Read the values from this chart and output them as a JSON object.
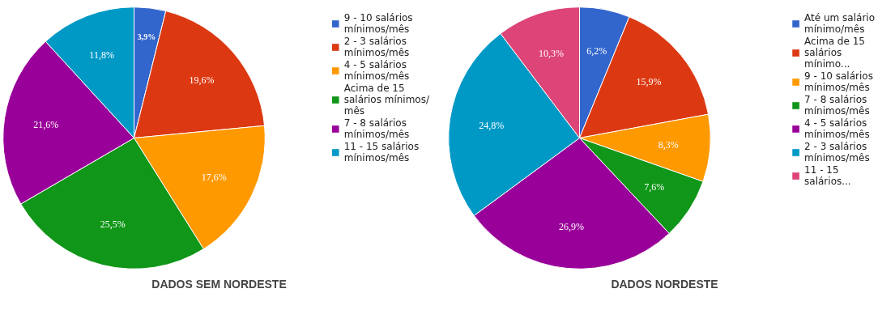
{
  "chart_data": [
    {
      "type": "pie",
      "title": "DADOS SEM NORDESTE",
      "legend": "right",
      "categories": [
        "9 - 10 salários mínimos/mês",
        "2 - 3 salários mínimos/mês",
        "4 - 5 salários mínimos/mês",
        "Acima de 15 salários mínimos/ mês",
        "7 - 8 salários mínimos/mês",
        "11 - 15 salários mínimos/mês"
      ],
      "values": [
        3.9,
        19.6,
        17.6,
        25.5,
        21.6,
        11.8
      ],
      "value_labels": [
        "3,9%",
        "19,6%",
        "17,6%",
        "25,5%",
        "21,6%",
        "11,8%"
      ],
      "colors": [
        "#3366cc",
        "#dc3912",
        "#ff9900",
        "#109618",
        "#990099",
        "#0099c6"
      ]
    },
    {
      "type": "pie",
      "title": "DADOS NORDESTE",
      "legend": "right",
      "categories": [
        "Até um salário mínimo/mês",
        "Acima de 15 salários mínimo...",
        "9 - 10 salários mínimos/mês",
        "7 - 8 salários mínimos/mês",
        "4 - 5 salários mínimos/mês",
        "2 - 3 salários mínimos/mês",
        "11 - 15 salários..."
      ],
      "values": [
        6.2,
        15.9,
        8.3,
        7.6,
        26.9,
        24.8,
        10.3
      ],
      "value_labels": [
        "6,2%",
        "15,9%",
        "8,3%",
        "7,6%",
        "26,9%",
        "24,8%",
        "10,3%"
      ],
      "colors": [
        "#3366cc",
        "#dc3912",
        "#ff9900",
        "#109618",
        "#990099",
        "#0099c6",
        "#dd4477"
      ]
    }
  ]
}
